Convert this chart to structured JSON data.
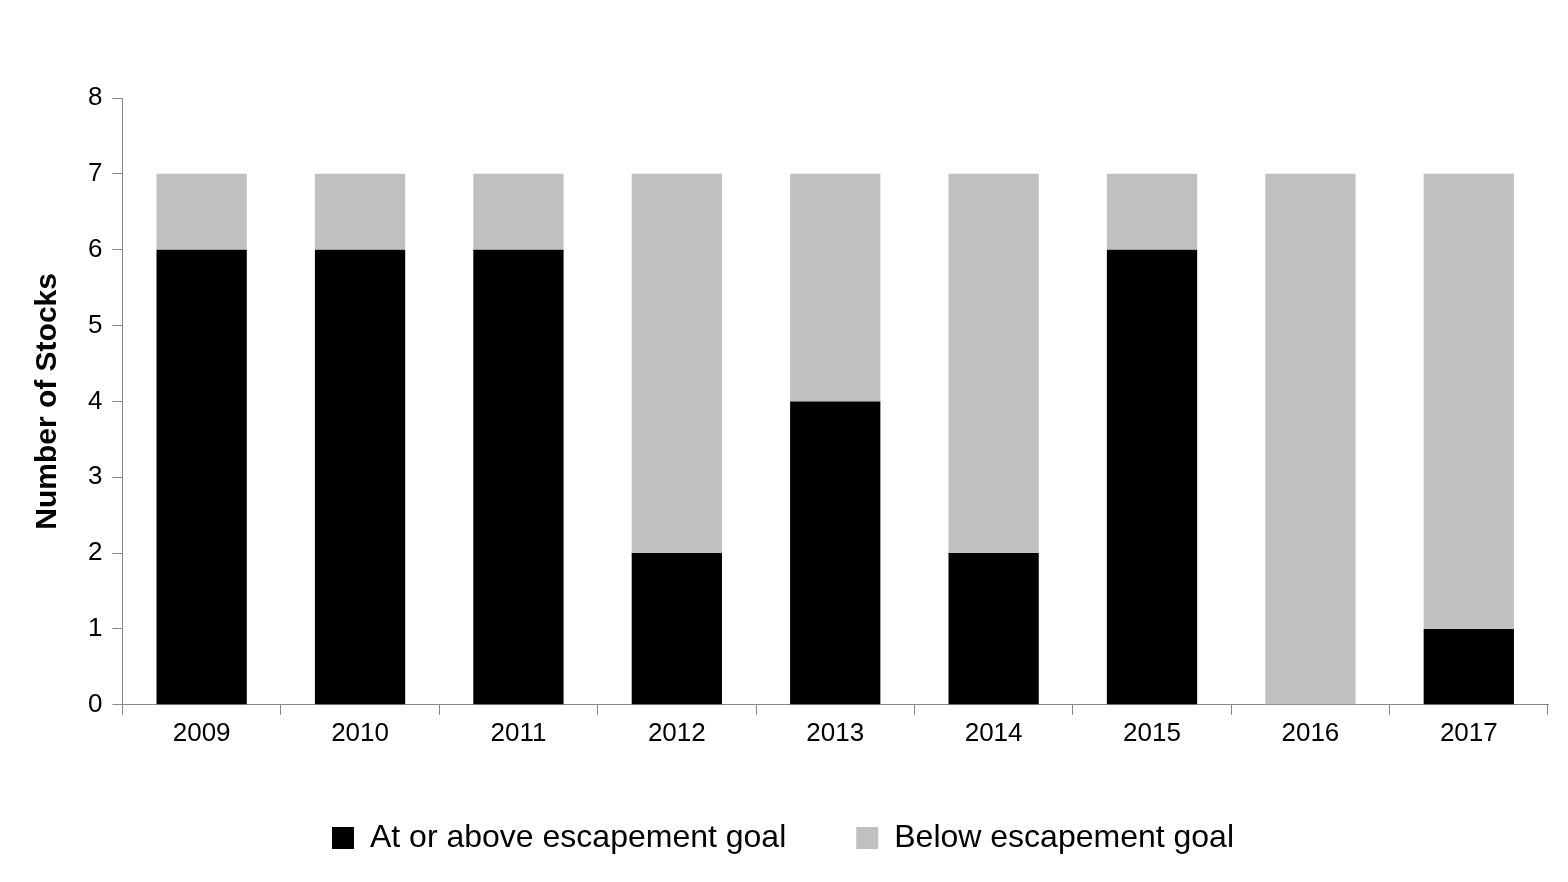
{
  "chart_data": {
    "type": "bar",
    "stacked": true,
    "ylabel": "Number of Stocks",
    "categories": [
      "2009",
      "2010",
      "2011",
      "2012",
      "2013",
      "2014",
      "2015",
      "2016",
      "2017"
    ],
    "series": [
      {
        "name": "At or above escapement goal",
        "color": "#000000",
        "values": [
          6,
          6,
          6,
          2,
          4,
          2,
          6,
          0,
          1
        ]
      },
      {
        "name": "Below escapement goal",
        "color": "#c0c0c0",
        "values": [
          1,
          1,
          1,
          5,
          3,
          5,
          1,
          7,
          6
        ]
      }
    ],
    "ylim": [
      0,
      8
    ],
    "yticks": [
      0,
      1,
      2,
      3,
      4,
      5,
      6,
      7,
      8
    ],
    "grid": false,
    "legend": "bottom"
  }
}
